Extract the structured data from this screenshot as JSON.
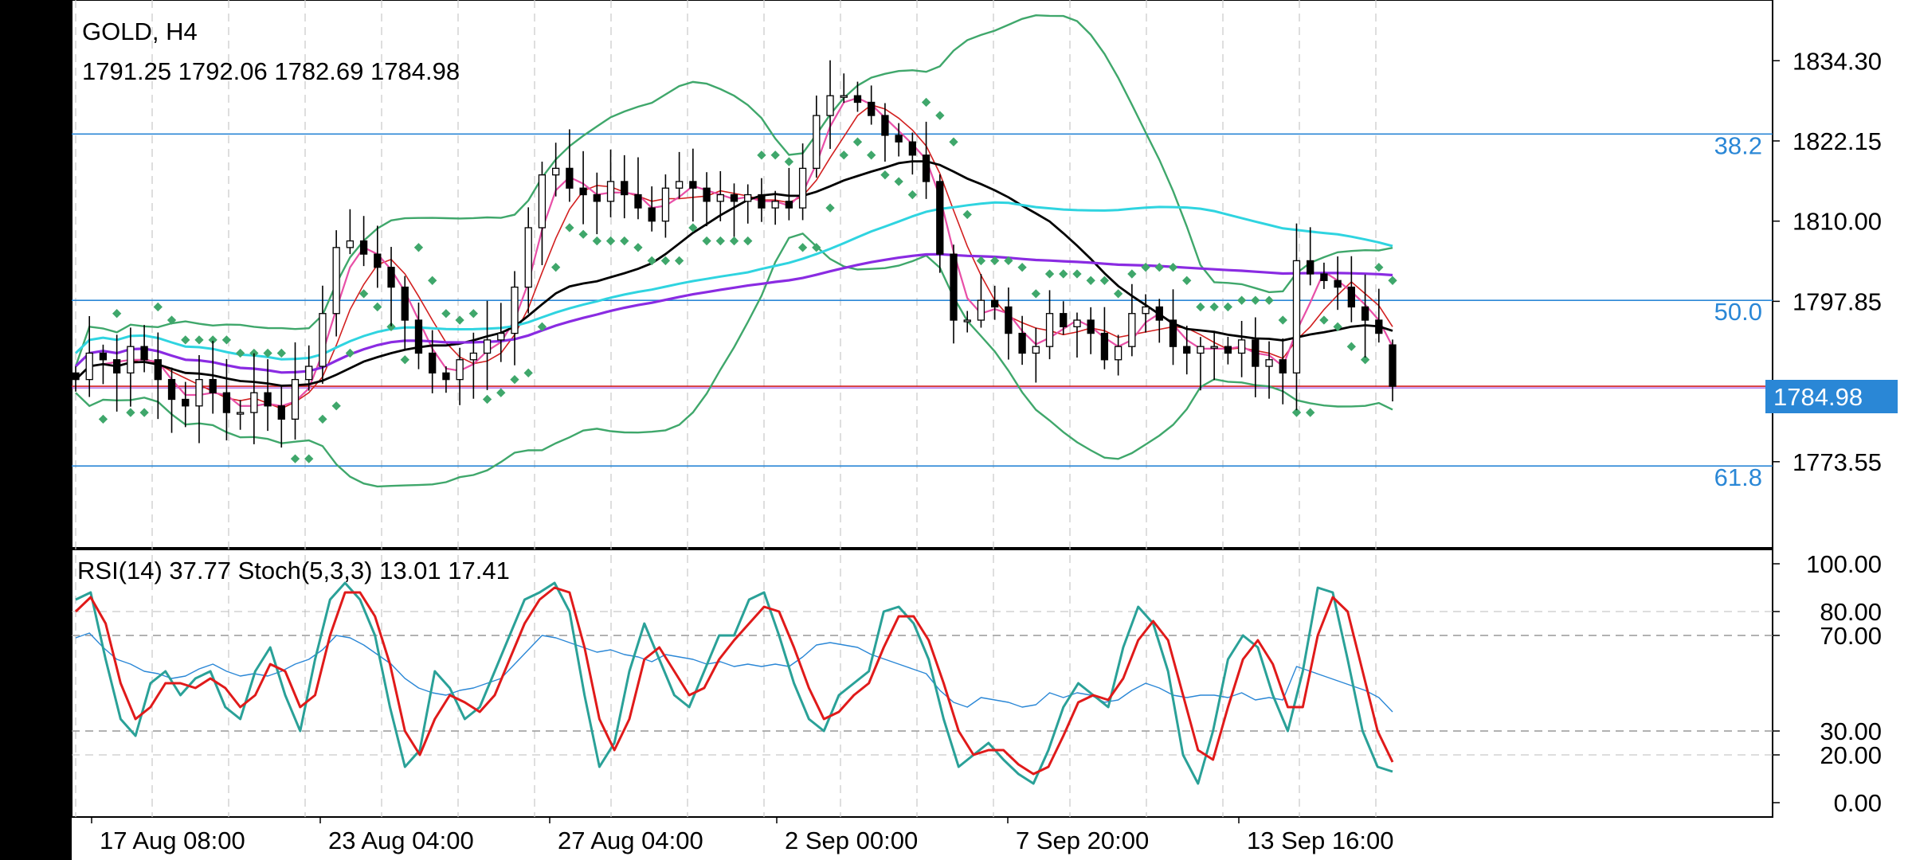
{
  "symbol_label": "GOLD, H4",
  "ohlc_label": "1791.25 1792.06 1782.69 1784.98",
  "indicator_label": "RSI(14) 37.77 Stoch(5,3,3) 13.01 17.41",
  "current_price_label": "1784.98",
  "fib_labels": [
    "38.2",
    "50.0",
    "61.8"
  ],
  "price_ticks": [
    "1834.30",
    "1822.15",
    "1810.00",
    "1797.85",
    "1773.55"
  ],
  "osc_ticks": [
    "100.00",
    "80.00",
    "70.00",
    "30.00",
    "20.00",
    "0.00"
  ],
  "time_ticks": [
    "17 Aug 08:00",
    "23 Aug 04:00",
    "27 Aug 04:00",
    "2 Sep 00:00",
    "7 Sep 20:00",
    "13 Sep 16:00"
  ],
  "colors": {
    "bollinger": "#3fa76b",
    "sar": "#3fa76b",
    "ma_black": "#000000",
    "ma_purple": "#8a2be2",
    "ma_cyan": "#2fd4e0",
    "ma_red": "#d22020",
    "ma_pink": "#ea4fa8",
    "fib_line": "#2a87d6",
    "price_tag": "#2a87d6",
    "stoch_main": "#2aa198",
    "stoch_signal": "#e01a1a",
    "rsi": "#2a87d6"
  },
  "chart_data": [
    {
      "type": "candlestick",
      "symbol": "GOLD",
      "timeframe": "H4",
      "last_ohlc": {
        "open": 1791.25,
        "high": 1792.06,
        "low": 1782.69,
        "close": 1784.98
      },
      "price_axis_ticks": [
        1834.3,
        1822.15,
        1810.0,
        1797.85,
        1773.55
      ],
      "ylim": [
        1760.5,
        1843.5
      ],
      "fibonacci_levels": [
        {
          "label": "38.2",
          "price": 1823.2
        },
        {
          "label": "50.0",
          "price": 1798.0
        },
        {
          "label": "61.8",
          "price": 1772.9
        }
      ],
      "close_series_approx": [
        1786,
        1790,
        1789,
        1787,
        1791,
        1789,
        1786,
        1783,
        1782,
        1786,
        1784,
        1781,
        1781,
        1784,
        1782,
        1780,
        1786,
        1788,
        1796,
        1806,
        1807,
        1805,
        1803,
        1800,
        1795,
        1790,
        1787,
        1786,
        1789,
        1790,
        1792,
        1793,
        1800,
        1809,
        1817,
        1818,
        1815,
        1814,
        1813,
        1816,
        1814,
        1812,
        1810,
        1815,
        1816,
        1815,
        1813,
        1814,
        1813,
        1814,
        1812,
        1813,
        1812,
        1818,
        1826,
        1829,
        1829,
        1828,
        1826,
        1823,
        1822,
        1820,
        1816,
        1805,
        1795,
        1795,
        1798,
        1797,
        1793,
        1790,
        1791,
        1796,
        1794,
        1795,
        1793,
        1789,
        1791,
        1796,
        1797,
        1795,
        1791,
        1790,
        1791,
        1791,
        1790,
        1792,
        1788,
        1789,
        1787,
        1804,
        1802,
        1801,
        1800,
        1797,
        1795,
        1793,
        1785
      ]
    },
    {
      "type": "line",
      "title": "RSI(14) 37.77 Stoch(5,3,3) 13.01 17.41",
      "ylim": [
        0,
        100
      ],
      "y_ticks": [
        100,
        80,
        70,
        30,
        20,
        0
      ],
      "series": [
        {
          "name": "RSI(14)",
          "last": 37.77,
          "values": [
            69,
            71,
            65,
            60,
            58,
            55,
            54,
            52,
            53,
            56,
            58,
            55,
            53,
            54,
            53,
            55,
            58,
            60,
            64,
            70,
            69,
            66,
            62,
            58,
            52,
            48,
            46,
            45,
            47,
            48,
            50,
            52,
            58,
            64,
            70,
            69,
            67,
            65,
            63,
            64,
            62,
            61,
            59,
            62,
            61,
            60,
            58,
            59,
            57,
            58,
            57,
            58,
            57,
            61,
            66,
            67,
            66,
            65,
            62,
            60,
            58,
            56,
            54,
            47,
            42,
            40,
            44,
            43,
            42,
            40,
            41,
            46,
            44,
            46,
            45,
            42,
            43,
            47,
            50,
            48,
            45,
            44,
            45,
            45,
            44,
            46,
            43,
            44,
            43,
            57,
            55,
            53,
            51,
            49,
            47,
            44,
            38
          ]
        },
        {
          "name": "Stoch(5,3,3) main",
          "last": 13.01,
          "values": [
            85,
            88,
            60,
            35,
            28,
            50,
            55,
            45,
            52,
            55,
            40,
            35,
            55,
            65,
            45,
            30,
            60,
            85,
            92,
            85,
            70,
            40,
            15,
            22,
            55,
            48,
            35,
            40,
            55,
            70,
            85,
            88,
            92,
            80,
            45,
            15,
            25,
            55,
            75,
            60,
            45,
            40,
            55,
            70,
            70,
            85,
            88,
            70,
            50,
            35,
            30,
            45,
            50,
            55,
            80,
            82,
            75,
            60,
            35,
            15,
            20,
            25,
            18,
            12,
            8,
            22,
            40,
            50,
            45,
            40,
            65,
            82,
            75,
            55,
            20,
            8,
            30,
            60,
            70,
            65,
            45,
            30,
            55,
            90,
            88,
            60,
            30,
            15,
            13
          ]
        },
        {
          "name": "Stoch(5,3,3) signal",
          "last": 17.41,
          "values": [
            80,
            86,
            75,
            50,
            35,
            40,
            50,
            50,
            48,
            52,
            48,
            40,
            45,
            58,
            55,
            40,
            45,
            70,
            88,
            88,
            78,
            58,
            30,
            20,
            35,
            45,
            42,
            38,
            45,
            60,
            75,
            85,
            90,
            88,
            65,
            35,
            22,
            35,
            60,
            65,
            55,
            45,
            48,
            60,
            68,
            75,
            82,
            80,
            65,
            48,
            35,
            38,
            45,
            50,
            65,
            78,
            78,
            68,
            50,
            30,
            20,
            22,
            22,
            16,
            12,
            15,
            28,
            42,
            45,
            43,
            52,
            68,
            76,
            68,
            45,
            22,
            18,
            40,
            60,
            68,
            58,
            40,
            40,
            70,
            86,
            80,
            55,
            30,
            17
          ]
        }
      ]
    }
  ]
}
